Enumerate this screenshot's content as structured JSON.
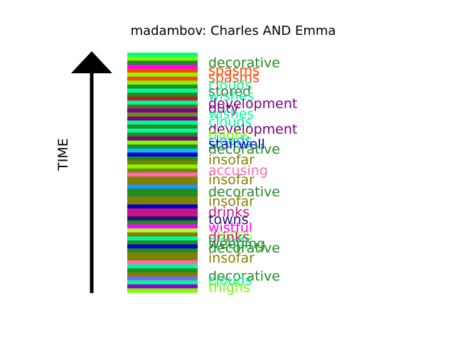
{
  "chart_data": {
    "type": "stacked-band-timeline",
    "title": "madambov: Charles AND Emma",
    "ylabel": "TIME",
    "bands": [
      {
        "color": "#00FF7F"
      },
      {
        "color": "#7CFC00"
      },
      {
        "color": "#228B22"
      },
      {
        "color": "#FF00FF"
      },
      {
        "color": "#FF4500"
      },
      {
        "color": "#7FFF00"
      },
      {
        "color": "#FF4500"
      },
      {
        "color": "#7CFC00"
      },
      {
        "color": "#228B22"
      },
      {
        "color": "#00FA9A"
      },
      {
        "color": "#228B22"
      },
      {
        "color": "#B22222"
      },
      {
        "color": "#00FA9A"
      },
      {
        "color": "#556B2F"
      },
      {
        "color": "#800080"
      },
      {
        "color": "#6B8E23"
      },
      {
        "color": "#800080"
      },
      {
        "color": "#00FA9A"
      },
      {
        "color": "#228B22"
      },
      {
        "color": "#00FA9A"
      },
      {
        "color": "#228B22"
      },
      {
        "color": "#800080"
      },
      {
        "color": "#7CFC00"
      },
      {
        "color": "#228B22"
      },
      {
        "color": "#00BFFF"
      },
      {
        "color": "#0000CD"
      },
      {
        "color": "#228B22"
      },
      {
        "color": "#808000"
      },
      {
        "color": "#7CFC00"
      },
      {
        "color": "#808000"
      },
      {
        "color": "#FF69B4"
      },
      {
        "color": "#808000"
      },
      {
        "color": "#808000"
      },
      {
        "color": "#1E90FF"
      },
      {
        "color": "#228B22"
      },
      {
        "color": "#228B22"
      },
      {
        "color": "#808000"
      },
      {
        "color": "#808000"
      },
      {
        "color": "#0000CD"
      },
      {
        "color": "#C71585"
      },
      {
        "color": "#C71585"
      },
      {
        "color": "#191970"
      },
      {
        "color": "#228B22"
      },
      {
        "color": "#FF00FF"
      },
      {
        "color": "#ADFF2F"
      },
      {
        "color": "#808000"
      },
      {
        "color": "#00FA9A"
      },
      {
        "color": "#228B22"
      },
      {
        "color": "#0000CD"
      },
      {
        "color": "#228B22"
      },
      {
        "color": "#808000"
      },
      {
        "color": "#808000"
      },
      {
        "color": "#FF69B4"
      },
      {
        "color": "#00FA9A"
      },
      {
        "color": "#228B22"
      },
      {
        "color": "#808000"
      },
      {
        "color": "#7B68EE"
      },
      {
        "color": "#00FA9A"
      },
      {
        "color": "#9400D3"
      },
      {
        "color": "#7CFC00"
      }
    ],
    "labels": [
      {
        "text": "decorative",
        "color": "#228B22",
        "pos": 0.04
      },
      {
        "text": "spasms",
        "color": "#FF4500",
        "pos": 0.073
      },
      {
        "text": "spasms",
        "color": "#FF4500",
        "pos": 0.103
      },
      {
        "text": "clouds",
        "color": "#00FA9A",
        "pos": 0.133
      },
      {
        "text": "stored",
        "color": "#556B2F",
        "pos": 0.16
      },
      {
        "text": "wishes",
        "color": "#00FA9A",
        "pos": 0.178
      },
      {
        "text": "development",
        "color": "#800080",
        "pos": 0.21
      },
      {
        "text": "duty",
        "color": "#800080",
        "pos": 0.23
      },
      {
        "text": "wishes",
        "color": "#00FA9A",
        "pos": 0.253
      },
      {
        "text": "clouds",
        "color": "#00FA9A",
        "pos": 0.288
      },
      {
        "text": "development",
        "color": "#800080",
        "pos": 0.318
      },
      {
        "text": "thighs",
        "color": "#7CFC00",
        "pos": 0.343
      },
      {
        "text": "clouds",
        "color": "#00BFFF",
        "pos": 0.365
      },
      {
        "text": "stairwell",
        "color": "#0000CD",
        "pos": 0.38
      },
      {
        "text": "decorative",
        "color": "#228B22",
        "pos": 0.4
      },
      {
        "text": "insofar",
        "color": "#808000",
        "pos": 0.445
      },
      {
        "text": "accusing",
        "color": "#FF69B4",
        "pos": 0.49
      },
      {
        "text": "insofar",
        "color": "#808000",
        "pos": 0.528
      },
      {
        "text": "decorative",
        "color": "#228B22",
        "pos": 0.578
      },
      {
        "text": "insofar",
        "color": "#808000",
        "pos": 0.618
      },
      {
        "text": "drinks",
        "color": "#C71585",
        "pos": 0.663
      },
      {
        "text": "towns",
        "color": "#191970",
        "pos": 0.695
      },
      {
        "text": "wistful",
        "color": "#FF00FF",
        "pos": 0.728
      },
      {
        "text": "apples",
        "color": "#ADFF2F",
        "pos": 0.755
      },
      {
        "text": "drinks",
        "color": "#C71585",
        "pos": 0.768
      },
      {
        "text": "clouds",
        "color": "#00FA9A",
        "pos": 0.785
      },
      {
        "text": "weeping",
        "color": "#228B22",
        "pos": 0.795
      },
      {
        "text": "decorative",
        "color": "#228B22",
        "pos": 0.813
      },
      {
        "text": "insofar",
        "color": "#808000",
        "pos": 0.855
      },
      {
        "text": "decorative",
        "color": "#228B22",
        "pos": 0.93
      },
      {
        "text": "clouds",
        "color": "#00FA9A",
        "pos": 0.948
      },
      {
        "text": "thighs",
        "color": "#7CFC00",
        "pos": 0.978
      }
    ]
  }
}
